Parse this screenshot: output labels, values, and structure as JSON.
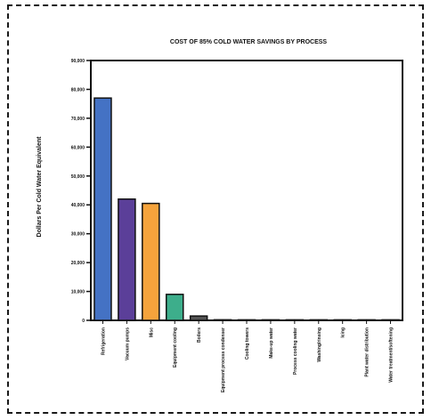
{
  "chart_data": {
    "type": "bar",
    "title": "COST OF 85% COLD WATER SAVINGS BY PROCESS",
    "xlabel": "",
    "ylabel": "Dollars Per Cold Water Equivalent",
    "ylim": [
      0,
      90000
    ],
    "yticks": [
      0,
      10000,
      20000,
      30000,
      40000,
      50000,
      60000,
      70000,
      80000,
      90000
    ],
    "ytick_labels": [
      "0",
      "10,000",
      "20,000",
      "30,000",
      "40,000",
      "50,000",
      "60,000",
      "70,000",
      "80,000",
      "90,000"
    ],
    "grid": false,
    "categories": [
      "Refrigeration",
      "Vacuum pumps",
      "Misc",
      "Equipment cooling",
      "Boilers",
      "Equipment process condenser",
      "Cooling towers",
      "Make-up water",
      "Process cooling water",
      "Washing/rinsing",
      "Icing",
      "Plant water distribution",
      "Water treatment/softening"
    ],
    "values": [
      77000,
      42000,
      40500,
      9000,
      1500,
      200,
      150,
      100,
      100,
      100,
      100,
      100,
      100
    ],
    "colors": [
      "#4472c4",
      "#5b3f99",
      "#f5a33c",
      "#3dae8b",
      "#555555",
      "#555555",
      "#555555",
      "#555555",
      "#555555",
      "#555555",
      "#555555",
      "#555555",
      "#555555"
    ]
  }
}
